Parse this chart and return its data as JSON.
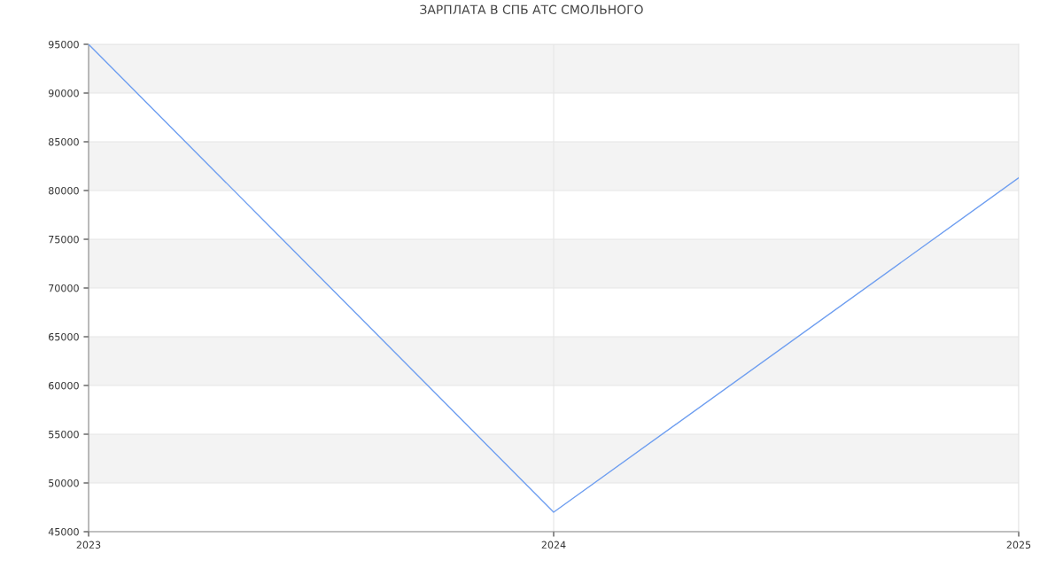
{
  "chart_data": {
    "type": "line",
    "title": "ЗАРПЛАТА В СПБ АТС СМОЛЬНОГО",
    "x": [
      2023,
      2024,
      2025
    ],
    "series": [
      {
        "color": "#6e9ef0",
        "values": [
          95000,
          47000,
          81300
        ]
      }
    ],
    "xlim": [
      2023,
      2025
    ],
    "xticks": [
      2023,
      2024,
      2025
    ],
    "ylim": [
      45000,
      95000
    ],
    "yticks": [
      45000,
      50000,
      55000,
      60000,
      65000,
      70000,
      75000,
      80000,
      85000,
      90000,
      95000
    ],
    "grid": true,
    "marker": "none",
    "line_style": "solid",
    "bands": [
      {
        "axis": "y",
        "from": 50000,
        "to": 55000,
        "color": "#f3f3f3"
      },
      {
        "axis": "y",
        "from": 60000,
        "to": 65000,
        "color": "#f3f3f3"
      },
      {
        "axis": "y",
        "from": 70000,
        "to": 75000,
        "color": "#f3f3f3"
      },
      {
        "axis": "y",
        "from": 80000,
        "to": 85000,
        "color": "#f3f3f3"
      },
      {
        "axis": "y",
        "from": 90000,
        "to": 95000,
        "color": "#f3f3f3"
      }
    ]
  }
}
